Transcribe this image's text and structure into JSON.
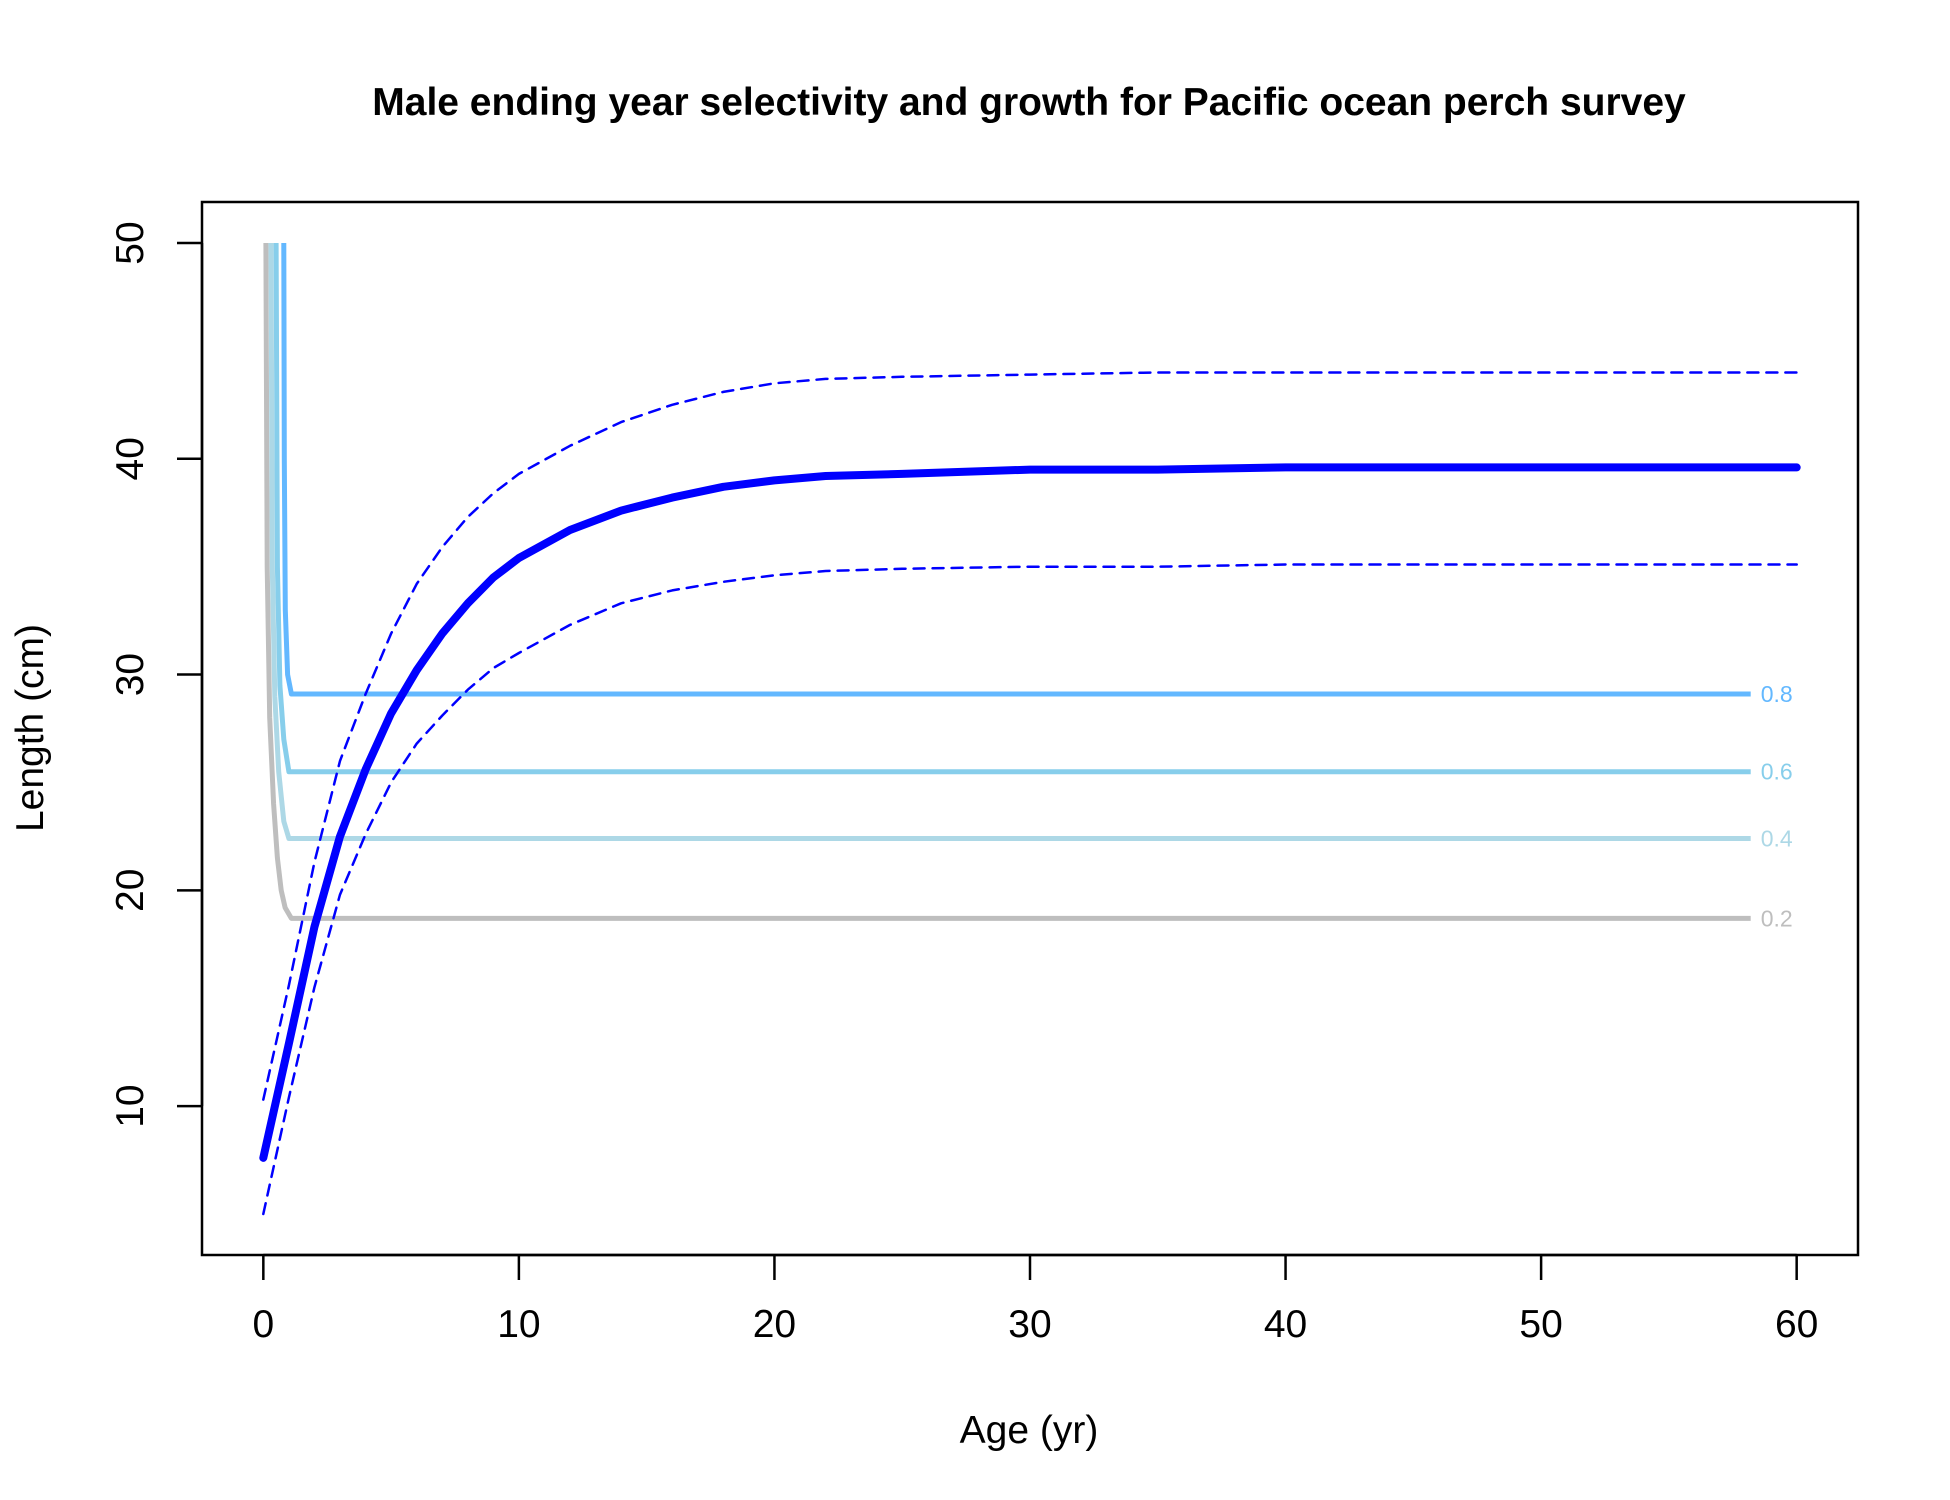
{
  "chart_data": {
    "type": "line",
    "title": "Male ending year selectivity and growth for Pacific ocean perch survey",
    "xlabel": "Age (yr)",
    "ylabel": "Length (cm)",
    "xlim": [
      -2.4,
      62.4
    ],
    "ylim": [
      3.1,
      51.9
    ],
    "xticks": [
      0,
      10,
      20,
      30,
      40,
      50,
      60
    ],
    "yticks": [
      10,
      20,
      30,
      40,
      50
    ],
    "grid": false,
    "series": [
      {
        "role": "mean-length",
        "color": "#0000FF",
        "style": "solid",
        "x": [
          0,
          1,
          2,
          3,
          4,
          5,
          6,
          7,
          8,
          9,
          10,
          12,
          14,
          16,
          18,
          20,
          22,
          25,
          30,
          35,
          40,
          50,
          60
        ],
        "y": [
          7.6,
          12.9,
          18.3,
          22.5,
          25.6,
          28.2,
          30.2,
          31.9,
          33.3,
          34.5,
          35.4,
          36.7,
          37.6,
          38.2,
          38.7,
          39.0,
          39.2,
          39.3,
          39.5,
          39.5,
          39.6,
          39.6,
          39.6
        ]
      },
      {
        "role": "upper-interval",
        "color": "#0000FF",
        "style": "dashed",
        "x": [
          0,
          1,
          2,
          3,
          4,
          5,
          6,
          7,
          8,
          9,
          10,
          12,
          14,
          16,
          18,
          20,
          22,
          25,
          30,
          35,
          40,
          50,
          60
        ],
        "y": [
          10.3,
          15.6,
          21.3,
          26.0,
          29.1,
          31.9,
          34.2,
          35.9,
          37.3,
          38.4,
          39.3,
          40.6,
          41.7,
          42.5,
          43.1,
          43.5,
          43.7,
          43.8,
          43.9,
          44.0,
          44.0,
          44.0,
          44.0
        ]
      },
      {
        "role": "lower-interval",
        "color": "#0000FF",
        "style": "dashed",
        "x": [
          0,
          1,
          2,
          3,
          4,
          5,
          6,
          7,
          8,
          9,
          10,
          12,
          14,
          16,
          18,
          20,
          22,
          25,
          30,
          35,
          40,
          50,
          60
        ],
        "y": [
          5.0,
          10.4,
          15.5,
          19.8,
          22.6,
          25.0,
          26.8,
          28.1,
          29.3,
          30.3,
          31.0,
          32.3,
          33.3,
          33.9,
          34.3,
          34.6,
          34.8,
          34.9,
          35.0,
          35.0,
          35.1,
          35.1,
          35.1
        ]
      }
    ],
    "contours": [
      {
        "label": "0.2",
        "color": "#BEBEBE",
        "x": [
          0.1,
          0.15,
          0.25,
          0.4,
          0.55,
          0.7,
          0.85,
          1.1,
          58.2
        ],
        "y": [
          50,
          35,
          28,
          24,
          21.5,
          20,
          19.2,
          18.7,
          18.7
        ]
      },
      {
        "label": "0.4",
        "color": "#ADD8E6",
        "x": [
          0.3,
          0.35,
          0.45,
          0.6,
          0.8,
          1.0,
          58.2
        ],
        "y": [
          50,
          35,
          29,
          25.5,
          23.2,
          22.4,
          22.4
        ]
      },
      {
        "label": "0.6",
        "color": "#87CEEB",
        "x": [
          0.5,
          0.55,
          0.65,
          0.8,
          1.0,
          58.2
        ],
        "y": [
          50,
          35,
          29.5,
          27,
          25.5,
          25.5
        ]
      },
      {
        "label": "0.8",
        "color": "#63B8FF",
        "x": [
          0.8,
          0.82,
          0.86,
          0.95,
          1.1,
          58.2
        ],
        "y": [
          50,
          40,
          33,
          30,
          29.1,
          29.1
        ]
      }
    ]
  }
}
